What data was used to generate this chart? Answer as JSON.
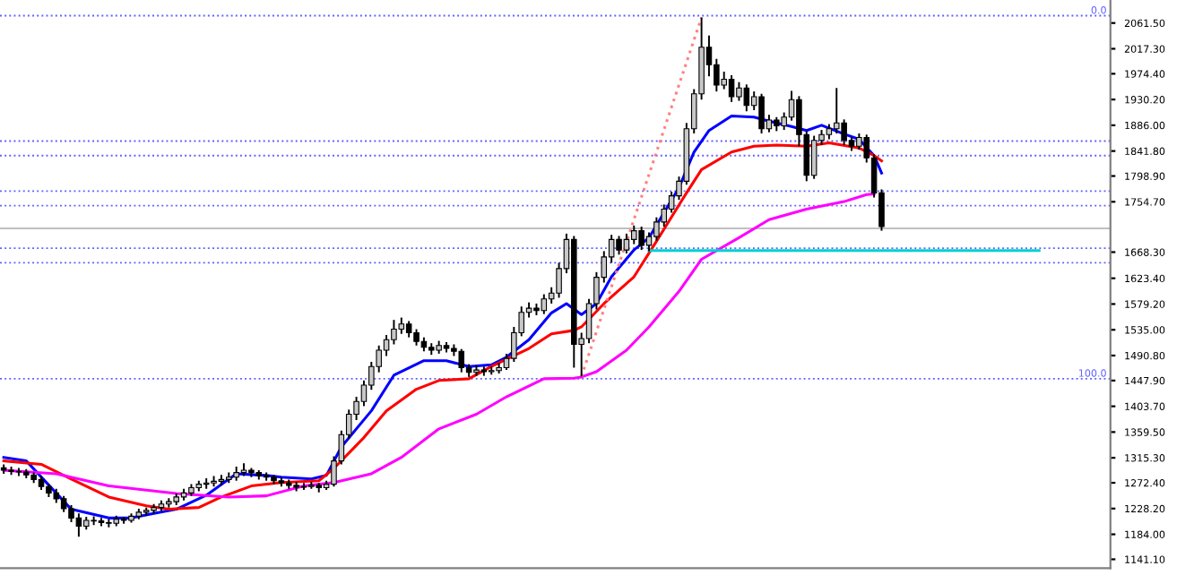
{
  "chart_data": {
    "type": "candlestick",
    "categories": [
      null,
      null,
      null,
      null,
      null,
      null,
      null,
      null,
      null,
      null,
      null,
      null,
      null,
      null,
      null,
      null,
      null,
      null,
      null,
      null,
      null,
      null,
      null,
      null,
      null,
      null,
      null,
      null,
      null,
      null,
      null,
      null,
      null,
      null,
      null,
      null,
      null,
      null,
      null,
      null,
      null,
      null,
      null,
      null,
      null,
      null,
      null,
      null,
      null,
      null,
      null,
      null,
      null,
      null,
      null,
      null,
      null,
      null,
      null,
      null,
      null,
      null,
      null,
      null,
      null,
      null,
      null,
      null,
      null,
      null,
      null,
      null,
      null,
      null,
      null,
      null,
      null,
      null,
      null,
      null,
      null,
      null,
      null,
      null,
      null,
      null,
      null,
      null,
      null,
      null,
      null,
      null,
      null,
      null,
      null,
      null,
      null,
      null,
      null,
      null,
      null,
      null,
      null,
      null,
      null,
      null,
      null,
      null,
      null,
      null,
      null,
      null,
      null,
      null,
      null,
      null,
      null,
      null,
      null,
      null,
      null,
      null,
      null,
      null,
      null,
      null,
      null,
      null,
      null,
      null,
      null,
      null,
      null,
      null,
      null,
      null,
      null,
      null,
      null,
      null,
      null,
      null,
      null,
      null,
      null,
      null,
      null,
      null
    ],
    "ohlc": [
      [
        1298,
        1304,
        1288,
        1294
      ],
      [
        1294,
        1300,
        1286,
        1292
      ],
      [
        1292,
        1298,
        1284,
        1291
      ],
      [
        1291,
        1296,
        1280,
        1286
      ],
      [
        1286,
        1290,
        1272,
        1278
      ],
      [
        1278,
        1284,
        1260,
        1266
      ],
      [
        1266,
        1270,
        1248,
        1255
      ],
      [
        1255,
        1262,
        1238,
        1245
      ],
      [
        1245,
        1250,
        1222,
        1228
      ],
      [
        1228,
        1234,
        1205,
        1212
      ],
      [
        1212,
        1220,
        1180,
        1198
      ],
      [
        1198,
        1214,
        1192,
        1208
      ],
      [
        1208,
        1215,
        1200,
        1207
      ],
      [
        1207,
        1212,
        1198,
        1204
      ],
      [
        1204,
        1210,
        1196,
        1203
      ],
      [
        1203,
        1216,
        1198,
        1210
      ],
      [
        1210,
        1214,
        1202,
        1208
      ],
      [
        1208,
        1220,
        1204,
        1215
      ],
      [
        1215,
        1228,
        1210,
        1222
      ],
      [
        1222,
        1230,
        1216,
        1225
      ],
      [
        1225,
        1236,
        1220,
        1230
      ],
      [
        1230,
        1242,
        1224,
        1236
      ],
      [
        1236,
        1246,
        1230,
        1240
      ],
      [
        1240,
        1254,
        1234,
        1248
      ],
      [
        1248,
        1262,
        1242,
        1255
      ],
      [
        1255,
        1270,
        1250,
        1264
      ],
      [
        1264,
        1276,
        1258,
        1270
      ],
      [
        1270,
        1280,
        1262,
        1272
      ],
      [
        1272,
        1284,
        1266,
        1275
      ],
      [
        1275,
        1286,
        1268,
        1278
      ],
      [
        1278,
        1290,
        1272,
        1282
      ],
      [
        1282,
        1300,
        1276,
        1290
      ],
      [
        1290,
        1306,
        1284,
        1294
      ],
      [
        1294,
        1298,
        1282,
        1290
      ],
      [
        1290,
        1294,
        1278,
        1285
      ],
      [
        1285,
        1290,
        1276,
        1282
      ],
      [
        1282,
        1286,
        1270,
        1276
      ],
      [
        1276,
        1282,
        1266,
        1272
      ],
      [
        1272,
        1278,
        1262,
        1268
      ],
      [
        1268,
        1274,
        1258,
        1265
      ],
      [
        1265,
        1272,
        1260,
        1266
      ],
      [
        1266,
        1274,
        1262,
        1268
      ],
      [
        1268,
        1272,
        1256,
        1264
      ],
      [
        1264,
        1276,
        1260,
        1270
      ],
      [
        1270,
        1318,
        1266,
        1310
      ],
      [
        1310,
        1362,
        1304,
        1355
      ],
      [
        1355,
        1398,
        1348,
        1390
      ],
      [
        1390,
        1420,
        1380,
        1412
      ],
      [
        1412,
        1448,
        1404,
        1440
      ],
      [
        1440,
        1480,
        1432,
        1472
      ],
      [
        1472,
        1508,
        1462,
        1500
      ],
      [
        1500,
        1526,
        1490,
        1518
      ],
      [
        1518,
        1552,
        1510,
        1536
      ],
      [
        1536,
        1556,
        1528,
        1545
      ],
      [
        1545,
        1550,
        1522,
        1530
      ],
      [
        1530,
        1536,
        1508,
        1515
      ],
      [
        1515,
        1522,
        1498,
        1505
      ],
      [
        1505,
        1512,
        1492,
        1500
      ],
      [
        1500,
        1516,
        1494,
        1508
      ],
      [
        1508,
        1514,
        1496,
        1503
      ],
      [
        1503,
        1510,
        1490,
        1498
      ],
      [
        1498,
        1502,
        1462,
        1470
      ],
      [
        1470,
        1476,
        1454,
        1462
      ],
      [
        1462,
        1474,
        1456,
        1466
      ],
      [
        1466,
        1472,
        1456,
        1463
      ],
      [
        1463,
        1472,
        1458,
        1465
      ],
      [
        1465,
        1478,
        1460,
        1470
      ],
      [
        1470,
        1494,
        1466,
        1486
      ],
      [
        1486,
        1540,
        1480,
        1530
      ],
      [
        1530,
        1575,
        1524,
        1565
      ],
      [
        1565,
        1582,
        1556,
        1572
      ],
      [
        1572,
        1580,
        1560,
        1568
      ],
      [
        1568,
        1596,
        1562,
        1588
      ],
      [
        1588,
        1608,
        1580,
        1598
      ],
      [
        1598,
        1650,
        1590,
        1640
      ],
      [
        1640,
        1700,
        1632,
        1690
      ],
      [
        1690,
        1696,
        1470,
        1510
      ],
      [
        1510,
        1530,
        1455,
        1520
      ],
      [
        1520,
        1588,
        1512,
        1580
      ],
      [
        1580,
        1634,
        1570,
        1625
      ],
      [
        1625,
        1670,
        1616,
        1660
      ],
      [
        1660,
        1698,
        1650,
        1690
      ],
      [
        1690,
        1696,
        1664,
        1672
      ],
      [
        1672,
        1700,
        1666,
        1690
      ],
      [
        1690,
        1714,
        1682,
        1705
      ],
      [
        1705,
        1712,
        1672,
        1680
      ],
      [
        1680,
        1702,
        1670,
        1695
      ],
      [
        1695,
        1728,
        1688,
        1720
      ],
      [
        1720,
        1750,
        1712,
        1742
      ],
      [
        1742,
        1772,
        1736,
        1765
      ],
      [
        1765,
        1798,
        1758,
        1790
      ],
      [
        1790,
        1890,
        1784,
        1880
      ],
      [
        1880,
        1948,
        1872,
        1940
      ],
      [
        1940,
        2071,
        1930,
        2020
      ],
      [
        2020,
        2040,
        1970,
        1990
      ],
      [
        1990,
        2000,
        1944,
        1955
      ],
      [
        1955,
        1978,
        1948,
        1965
      ],
      [
        1965,
        1972,
        1926,
        1935
      ],
      [
        1935,
        1960,
        1928,
        1950
      ],
      [
        1950,
        1956,
        1910,
        1920
      ],
      [
        1920,
        1944,
        1912,
        1935
      ],
      [
        1935,
        1940,
        1872,
        1880
      ],
      [
        1880,
        1904,
        1874,
        1895
      ],
      [
        1895,
        1900,
        1876,
        1885
      ],
      [
        1885,
        1908,
        1878,
        1900
      ],
      [
        1900,
        1945,
        1894,
        1930
      ],
      [
        1930,
        1936,
        1850,
        1870
      ],
      [
        1870,
        1876,
        1790,
        1800
      ],
      [
        1800,
        1868,
        1794,
        1860
      ],
      [
        1860,
        1878,
        1852,
        1870
      ],
      [
        1870,
        1888,
        1862,
        1880
      ],
      [
        1880,
        1950,
        1872,
        1890
      ],
      [
        1890,
        1896,
        1852,
        1860
      ],
      [
        1860,
        1866,
        1842,
        1850
      ],
      [
        1850,
        1872,
        1844,
        1865
      ],
      [
        1865,
        1870,
        1822,
        1830
      ],
      [
        1830,
        1836,
        1762,
        1770
      ],
      [
        1770,
        1776,
        1705,
        1712
      ],
      null,
      null,
      null,
      null,
      null,
      null,
      null,
      null,
      null,
      null,
      null,
      null,
      null,
      null,
      null,
      null,
      null,
      null,
      null,
      null,
      null,
      null,
      null,
      null,
      null,
      null,
      null,
      null,
      null,
      null
    ],
    "series": [
      {
        "type": "line",
        "color": "#0000ff",
        "values": [
          1316,
          null,
          null,
          1310,
          null,
          null,
          null,
          null,
          null,
          1227,
          null,
          null,
          null,
          null,
          1212,
          null,
          null,
          1212,
          null,
          null,
          1220,
          null,
          null,
          1227,
          null,
          null,
          null,
          1251,
          null,
          null,
          null,
          1288,
          null,
          null,
          null,
          1285,
          null,
          1282,
          null,
          null,
          null,
          1279,
          null,
          1285,
          null,
          1334,
          null,
          null,
          null,
          1396,
          null,
          null,
          1457,
          null,
          null,
          null,
          1482,
          null,
          null,
          1482,
          null,
          null,
          1472,
          null,
          null,
          1475,
          null,
          1488,
          null,
          null,
          1518,
          null,
          null,
          1564,
          null,
          1580,
          null,
          1561,
          null,
          1580,
          null,
          1626,
          null,
          null,
          1672,
          null,
          1693,
          null,
          null,
          null,
          1779,
          null,
          1840,
          null,
          1877,
          null,
          null,
          1902,
          null,
          null,
          1900,
          null,
          1893,
          null,
          null,
          1884,
          null,
          1877,
          null,
          1886,
          null,
          null,
          1871,
          null,
          1862,
          null,
          1834,
          1804,
          null,
          null,
          null,
          null,
          null,
          null,
          null,
          null,
          null,
          null,
          null,
          null,
          null,
          null,
          null,
          null,
          null,
          null,
          null,
          null,
          null,
          null,
          null,
          null,
          null,
          null,
          null,
          null,
          null,
          null
        ]
      },
      {
        "type": "line",
        "color": "#ff0000",
        "values": [
          1310,
          null,
          null,
          null,
          null,
          1304,
          null,
          null,
          null,
          1279,
          null,
          null,
          null,
          null,
          1248,
          null,
          null,
          null,
          null,
          1233,
          null,
          null,
          1227,
          null,
          null,
          null,
          1230,
          null,
          null,
          1248,
          null,
          null,
          null,
          1267,
          null,
          null,
          null,
          1273,
          null,
          null,
          null,
          null,
          1276,
          null,
          1297,
          null,
          null,
          null,
          1350,
          null,
          null,
          1396,
          null,
          null,
          null,
          1433,
          null,
          null,
          1448,
          null,
          null,
          null,
          1451,
          null,
          null,
          1472,
          null,
          null,
          null,
          null,
          1503,
          null,
          null,
          1528,
          null,
          null,
          1534,
          1540,
          null,
          null,
          1580,
          null,
          null,
          null,
          1626,
          null,
          null,
          1687,
          null,
          null,
          null,
          1770,
          null,
          1810,
          null,
          null,
          null,
          1840,
          null,
          null,
          1850,
          null,
          null,
          1852,
          null,
          null,
          null,
          1850,
          null,
          null,
          1856,
          null,
          null,
          null,
          1847,
          null,
          1834,
          1825,
          null,
          null,
          null,
          null,
          null,
          null,
          null,
          null,
          null,
          null,
          null,
          null,
          null,
          null,
          null,
          null,
          null,
          null,
          null,
          null,
          null,
          null,
          null,
          null,
          null,
          null,
          null,
          null,
          null,
          null
        ]
      },
      {
        "type": "line",
        "color": "#ff00ff",
        "values": [
          1294,
          null,
          null,
          null,
          null,
          null,
          null,
          1288,
          null,
          null,
          null,
          null,
          null,
          null,
          1267,
          null,
          null,
          null,
          null,
          null,
          null,
          null,
          null,
          1254,
          null,
          null,
          null,
          null,
          null,
          null,
          1248,
          null,
          null,
          null,
          null,
          1250,
          null,
          null,
          null,
          null,
          1267,
          null,
          null,
          null,
          1273,
          null,
          null,
          null,
          null,
          1288,
          null,
          null,
          null,
          1316,
          null,
          null,
          null,
          null,
          1365,
          null,
          null,
          null,
          null,
          1390,
          null,
          null,
          null,
          1420,
          null,
          null,
          null,
          null,
          1451,
          null,
          null,
          null,
          1452,
          1454,
          null,
          1463,
          null,
          null,
          null,
          1500,
          null,
          null,
          1540,
          null,
          null,
          null,
          1601,
          null,
          null,
          1656,
          null,
          null,
          null,
          null,
          1693,
          null,
          null,
          null,
          1724,
          null,
          null,
          null,
          null,
          1742,
          null,
          null,
          null,
          null,
          1755,
          null,
          null,
          1767,
          1768,
          null,
          null,
          null,
          null,
          null,
          null,
          null,
          null,
          null,
          null,
          null,
          null,
          null,
          null,
          null,
          null,
          null,
          null,
          null,
          null,
          null,
          null,
          null,
          null,
          null,
          null,
          null,
          null,
          null,
          null,
          null
        ]
      },
      {
        "type": "line",
        "color": "#ff8080",
        "line_style": "dotted",
        "values": [
          null,
          null,
          null,
          null,
          null,
          null,
          null,
          null,
          null,
          null,
          null,
          null,
          null,
          null,
          null,
          null,
          null,
          null,
          null,
          null,
          null,
          null,
          null,
          null,
          null,
          null,
          null,
          null,
          null,
          null,
          null,
          null,
          null,
          null,
          null,
          null,
          null,
          null,
          null,
          null,
          null,
          null,
          null,
          null,
          null,
          null,
          null,
          null,
          null,
          null,
          null,
          null,
          null,
          null,
          null,
          null,
          null,
          null,
          null,
          null,
          null,
          null,
          null,
          null,
          null,
          null,
          null,
          null,
          null,
          null,
          null,
          null,
          null,
          null,
          null,
          null,
          null,
          1455,
          null,
          null,
          null,
          null,
          null,
          null,
          null,
          null,
          null,
          null,
          null,
          null,
          null,
          null,
          null,
          2071,
          null,
          null,
          null,
          null,
          null,
          null,
          null,
          null,
          null,
          null,
          null,
          null,
          null,
          null,
          null,
          null,
          null,
          null,
          null,
          null,
          null,
          null,
          null,
          null,
          null,
          null,
          null,
          null,
          null,
          null,
          null,
          null,
          null,
          null,
          null,
          null,
          null,
          null,
          null,
          null,
          null,
          null,
          null,
          null,
          null,
          null,
          null,
          null,
          null,
          null,
          null,
          null,
          null,
          null
        ]
      },
      {
        "type": "line",
        "color": "#00d0d0",
        "values": [
          null,
          null,
          null,
          null,
          null,
          null,
          null,
          null,
          null,
          null,
          null,
          null,
          null,
          null,
          null,
          null,
          null,
          null,
          null,
          null,
          null,
          null,
          null,
          null,
          null,
          null,
          null,
          null,
          null,
          null,
          null,
          null,
          null,
          null,
          null,
          null,
          null,
          null,
          null,
          null,
          null,
          null,
          null,
          null,
          null,
          null,
          null,
          null,
          null,
          null,
          null,
          null,
          null,
          null,
          null,
          null,
          null,
          null,
          null,
          null,
          null,
          null,
          null,
          null,
          null,
          null,
          null,
          null,
          null,
          null,
          null,
          null,
          null,
          null,
          null,
          null,
          null,
          null,
          null,
          null,
          null,
          null,
          null,
          null,
          null,
          null,
          1671,
          null,
          null,
          null,
          null,
          null,
          null,
          null,
          null,
          null,
          null,
          null,
          null,
          null,
          null,
          null,
          null,
          null,
          null,
          null,
          null,
          null,
          null,
          null,
          null,
          null,
          null,
          null,
          null,
          null,
          null,
          null,
          null,
          null,
          null,
          null,
          null,
          null,
          null,
          null,
          null,
          null,
          null,
          null,
          null,
          null,
          null,
          null,
          null,
          null,
          null,
          null,
          1671,
          null,
          null,
          null,
          null,
          null,
          null,
          null,
          null,
          null
        ]
      }
    ],
    "ylim": [
      1126,
      2101
    ],
    "yticks": [
      {
        "value": 2061.5,
        "label": "2061.50"
      },
      {
        "value": 2017.3,
        "label": "2017.30"
      },
      {
        "value": 1974.4,
        "label": "1974.40"
      },
      {
        "value": 1930.2,
        "label": "1930.20"
      },
      {
        "value": 1886,
        "label": "1886.00"
      },
      {
        "value": 1841.8,
        "label": "1841.80"
      },
      {
        "value": 1798.9,
        "label": "1798.90"
      },
      {
        "value": 1754.7,
        "label": "1754.70"
      },
      {
        "value": 1668.3,
        "label": "1668.30"
      },
      {
        "value": 1623.4,
        "label": "1623.40"
      },
      {
        "value": 1579.2,
        "label": "1579.20"
      },
      {
        "value": 1535,
        "label": "1535.00"
      },
      {
        "value": 1490.8,
        "label": "1490.80"
      },
      {
        "value": 1447.9,
        "label": "1447.90"
      },
      {
        "value": 1403.7,
        "label": "1403.70"
      },
      {
        "value": 1359.5,
        "label": "1359.50"
      },
      {
        "value": 1315.3,
        "label": "1315.30"
      },
      {
        "value": 1272.4,
        "label": "1272.40"
      },
      {
        "value": 1228.2,
        "label": "1228.20"
      },
      {
        "value": 1184,
        "label": "1184.00"
      },
      {
        "value": 1141.1,
        "label": "1141.10"
      }
    ],
    "ref_lines": [
      {
        "axis": "y",
        "value": 2074,
        "label": null,
        "color": "#6060ff",
        "line_style": "dotted"
      },
      {
        "axis": "y",
        "value": 1859,
        "label": null,
        "color": "#6060ff",
        "line_style": "dotted"
      },
      {
        "axis": "y",
        "value": 1834,
        "label": null,
        "color": "#6060ff",
        "line_style": "dotted"
      },
      {
        "axis": "y",
        "value": 1773,
        "label": null,
        "color": "#6060ff",
        "line_style": "dotted"
      },
      {
        "axis": "y",
        "value": 1748,
        "label": null,
        "color": "#6060ff",
        "line_style": "dotted"
      },
      {
        "axis": "y",
        "value": 1675,
        "label": null,
        "color": "#6060ff",
        "line_style": "dotted"
      },
      {
        "axis": "y",
        "value": 1650,
        "label": null,
        "color": "#6060ff",
        "line_style": "dotted"
      },
      {
        "axis": "y",
        "value": 1451,
        "label": null,
        "color": "#6060ff",
        "line_style": "dotted"
      },
      {
        "axis": "y",
        "value": 1709,
        "label": null,
        "color": "#c0c0c0",
        "line_style": "solid"
      }
    ],
    "annotations": [
      {
        "text": "0.0",
        "y": 2074
      },
      {
        "text": "100.0",
        "y": 1451
      }
    ],
    "tick_labels": "y",
    "grid": false,
    "legend": false
  }
}
